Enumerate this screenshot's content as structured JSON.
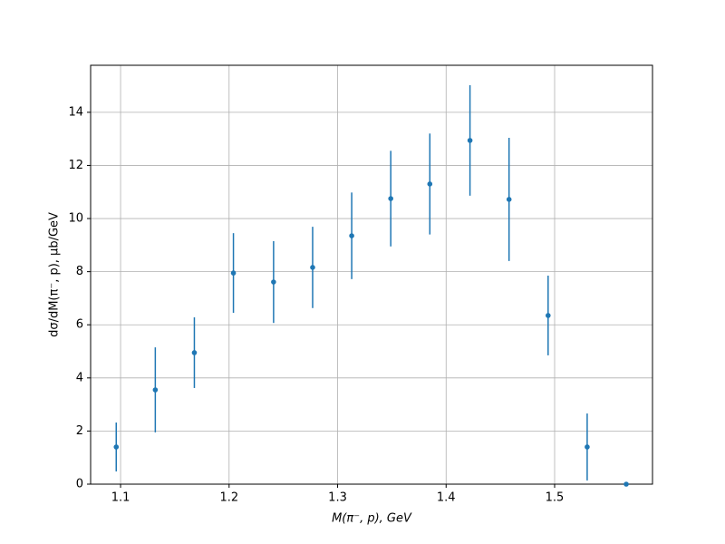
{
  "chart_data": {
    "type": "scatter",
    "xlabel": "M(π⁻, p), GeV",
    "ylabel": "dσ/dM(π⁻, p), µb/GeV",
    "x": [
      1.096,
      1.132,
      1.168,
      1.204,
      1.241,
      1.277,
      1.313,
      1.349,
      1.385,
      1.422,
      1.458,
      1.494,
      1.53,
      1.566
    ],
    "series": [
      {
        "color": "#1f77b4",
        "values": [
          1.4,
          3.55,
          4.95,
          7.95,
          7.61,
          8.16,
          9.35,
          10.75,
          11.3,
          12.94,
          10.72,
          6.35,
          1.4,
          0
        ],
        "errors": [
          0.92,
          1.6,
          1.33,
          1.5,
          1.54,
          1.53,
          1.63,
          1.8,
          1.9,
          2.08,
          2.32,
          1.5,
          1.26,
          0
        ]
      }
    ],
    "xlim": [
      1.0724,
      1.5902
    ],
    "xticks": [
      1.1,
      1.2,
      1.3,
      1.4,
      1.5
    ],
    "ylim": [
      0,
      15.77
    ],
    "yticks": [
      0,
      2,
      4,
      6,
      8,
      10,
      12,
      14
    ],
    "grid": true
  }
}
